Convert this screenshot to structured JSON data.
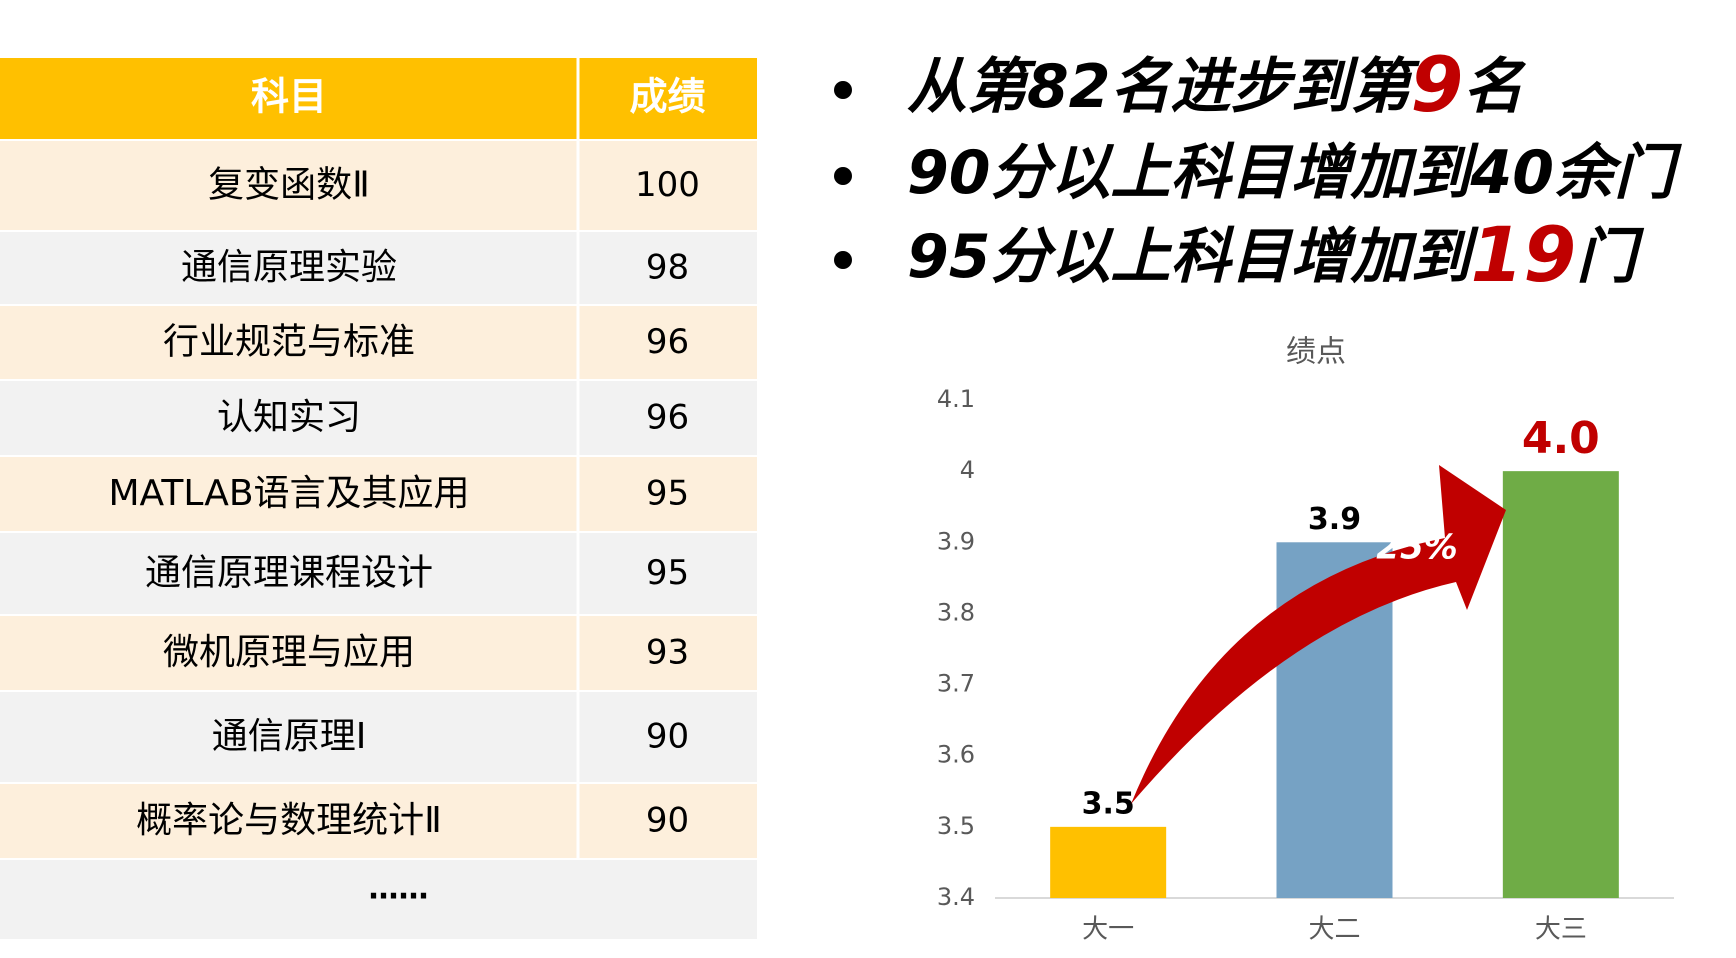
{
  "table": {
    "header": [
      "科目",
      "成绩"
    ],
    "rows": [
      [
        "复变函数Ⅱ",
        "100"
      ],
      [
        "通信原理实验",
        "98"
      ],
      [
        "行业规范与标准",
        "96"
      ],
      [
        "认知实习",
        "96"
      ],
      [
        "MATLAB语言及其应用",
        "95"
      ],
      [
        "通信原理课程设计",
        "95"
      ],
      [
        "微机原理与应用",
        "93"
      ],
      [
        "通信原理Ⅰ",
        "90"
      ],
      [
        "概率论与数理统计Ⅱ",
        "90"
      ]
    ],
    "more": "……"
  },
  "bullets": [
    [
      {
        "text": "从第82名进步到第",
        "color": "#000000"
      },
      {
        "text": "9",
        "color": "#c00000"
      },
      {
        "text": "名",
        "color": "#000000"
      }
    ],
    [
      {
        "text": "90分以上科目增加到40余门",
        "color": "#000000"
      }
    ],
    [
      {
        "text": "95分以上科目增加到",
        "color": "#000000"
      },
      {
        "text": "19",
        "color": "#c00000"
      },
      {
        "text": "门",
        "color": "#000000"
      }
    ]
  ],
  "chart_data": {
    "type": "bar",
    "title": "绩点",
    "categories": [
      "大一",
      "大二",
      "大三"
    ],
    "values": [
      3.5,
      3.9,
      4.0
    ],
    "value_labels": [
      "3.5",
      "3.9",
      "4.0"
    ],
    "value_label_colors": [
      "#000000",
      "#000000",
      "#c00000"
    ],
    "colors": [
      "#ffc000",
      "#76a2c4",
      "#6fac46"
    ],
    "ylim": [
      3.4,
      4.1
    ],
    "yticks": [
      3.4,
      3.5,
      3.6,
      3.7,
      3.8,
      3.9,
      4,
      4.1
    ],
    "grid": false,
    "annotation": "25%"
  }
}
